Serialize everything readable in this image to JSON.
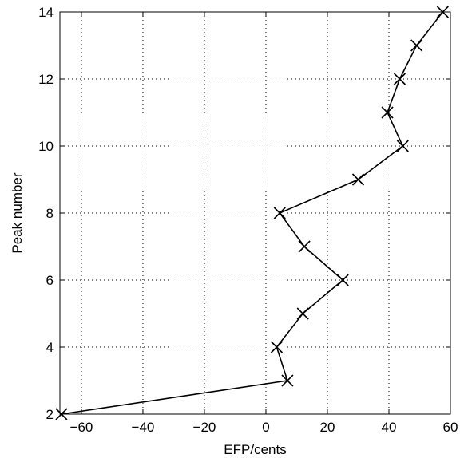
{
  "chart_data": {
    "type": "line",
    "title": "",
    "xlabel": "EFP/cents",
    "ylabel": "Peak number",
    "xlim": [
      -67,
      60
    ],
    "ylim": [
      2,
      14
    ],
    "xticks": [
      -60,
      -40,
      -20,
      0,
      20,
      40,
      60
    ],
    "yticks": [
      2,
      4,
      6,
      8,
      10,
      12,
      14
    ],
    "xtick_labels": [
      "−60",
      "−40",
      "−20",
      "0",
      "20",
      "40",
      "60"
    ],
    "ytick_labels": [
      "2",
      "4",
      "6",
      "8",
      "10",
      "12",
      "14"
    ],
    "grid": true,
    "marker": "x",
    "line_color": "#000000",
    "series": [
      {
        "x": [
          -66.5,
          7,
          3.5,
          12,
          25,
          12.5,
          4.5,
          30,
          44.5,
          39.5,
          43.5,
          49,
          57.5
        ],
        "y": [
          2,
          3,
          4,
          5,
          6,
          7,
          8,
          9,
          10,
          11,
          12,
          13,
          14
        ]
      }
    ]
  }
}
